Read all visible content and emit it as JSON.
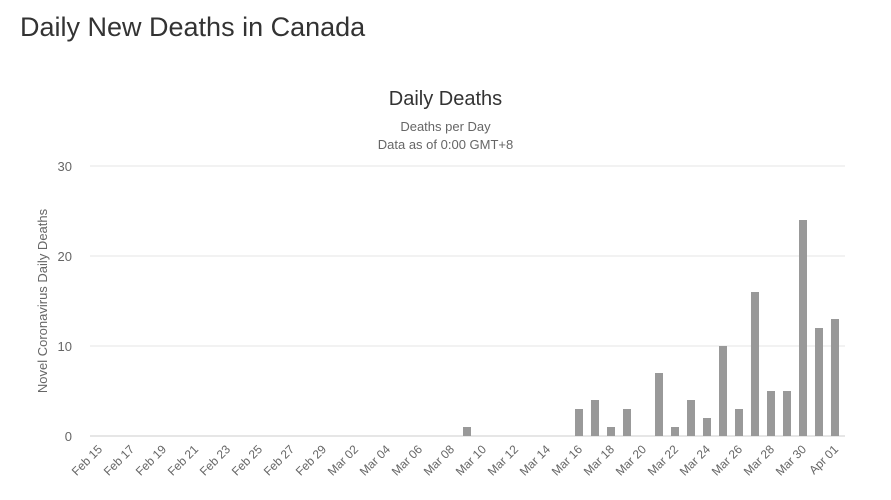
{
  "page_title": "Daily New Deaths in Canada",
  "chart_data": {
    "type": "bar",
    "title": "Daily Deaths",
    "subtitle_lines": [
      "Deaths per Day",
      "Data as of 0:00 GMT+8"
    ],
    "xlabel": "",
    "ylabel": "Novel Coronavirus Daily Deaths",
    "ylim": [
      0,
      30
    ],
    "yticks": [
      0,
      10,
      20,
      30
    ],
    "grid": true,
    "bar_color": "#999999",
    "categories": [
      "Feb 15",
      "Feb 16",
      "Feb 17",
      "Feb 18",
      "Feb 19",
      "Feb 20",
      "Feb 21",
      "Feb 22",
      "Feb 23",
      "Feb 24",
      "Feb 25",
      "Feb 26",
      "Feb 27",
      "Feb 28",
      "Feb 29",
      "Mar 01",
      "Mar 02",
      "Mar 03",
      "Mar 04",
      "Mar 05",
      "Mar 06",
      "Mar 07",
      "Mar 08",
      "Mar 09",
      "Mar 10",
      "Mar 11",
      "Mar 12",
      "Mar 13",
      "Mar 14",
      "Mar 15",
      "Mar 16",
      "Mar 17",
      "Mar 18",
      "Mar 19",
      "Mar 20",
      "Mar 21",
      "Mar 22",
      "Mar 23",
      "Mar 24",
      "Mar 25",
      "Mar 26",
      "Mar 27",
      "Mar 28",
      "Mar 29",
      "Mar 30",
      "Mar 31",
      "Apr 01"
    ],
    "values": [
      0,
      0,
      0,
      0,
      0,
      0,
      0,
      0,
      0,
      0,
      0,
      0,
      0,
      0,
      0,
      0,
      0,
      0,
      0,
      0,
      0,
      0,
      0,
      1,
      0,
      0,
      0,
      0,
      0,
      0,
      3,
      4,
      1,
      3,
      0,
      7,
      1,
      4,
      2,
      10,
      3,
      16,
      5,
      5,
      24,
      12,
      13
    ]
  }
}
